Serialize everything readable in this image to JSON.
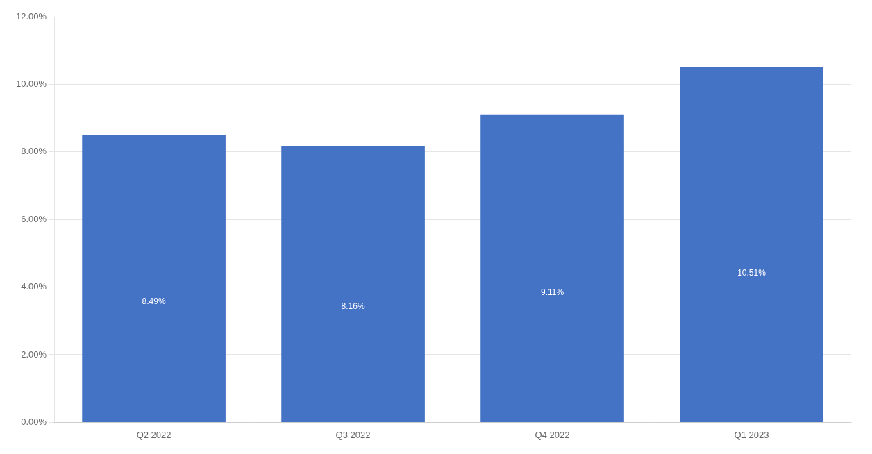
{
  "chart_data": {
    "type": "bar",
    "categories": [
      "Q2 2022",
      "Q3 2022",
      "Q4 2022",
      "Q1 2023"
    ],
    "values": [
      0.0849,
      0.0816,
      0.0911,
      0.1051
    ],
    "value_labels": [
      "8.49%",
      "8.16%",
      "9.11%",
      "10.51%"
    ],
    "data_labels": true,
    "color": "#4472C4",
    "ylim": [
      0,
      0.12
    ],
    "yticks": [
      {
        "value": 0.0,
        "label": "0.00%"
      },
      {
        "value": 0.02,
        "label": "2.00%"
      },
      {
        "value": 0.04,
        "label": "4.00%"
      },
      {
        "value": 0.06,
        "label": "6.00%"
      },
      {
        "value": 0.08,
        "label": "8.00%"
      },
      {
        "value": 0.1,
        "label": "10.00%"
      },
      {
        "value": 0.12,
        "label": "12.00%"
      }
    ],
    "grid": true
  }
}
